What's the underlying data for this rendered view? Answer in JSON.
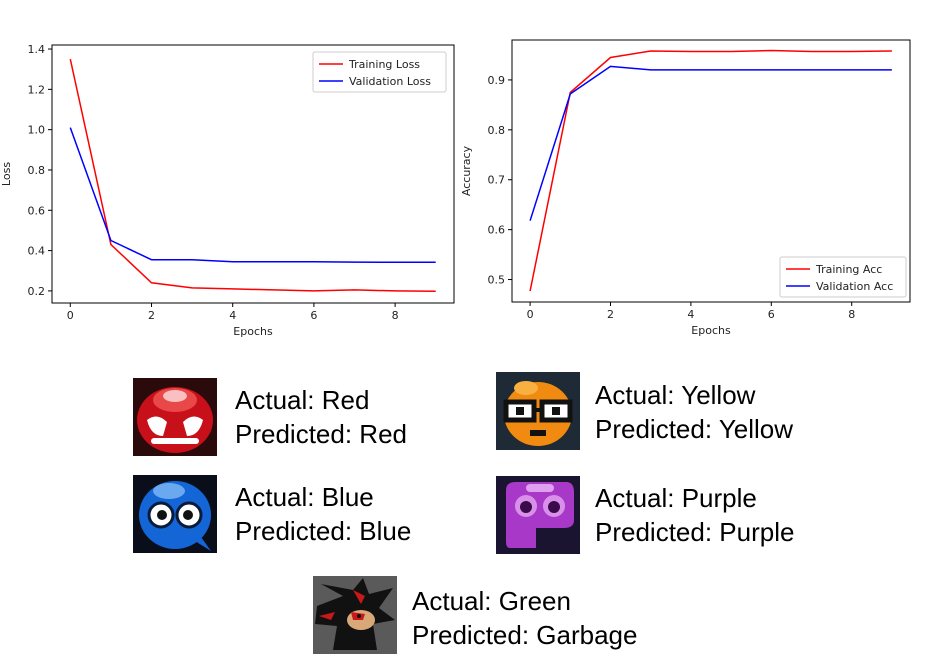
{
  "chart_data": [
    {
      "type": "line",
      "xlabel": "Epochs",
      "ylabel": "Loss",
      "xlim": [
        -0.45,
        9.45
      ],
      "ylim": [
        0.14,
        1.42
      ],
      "xticks": [
        "0",
        "2",
        "4",
        "6",
        "8"
      ],
      "yticks": [
        "0.2",
        "0.4",
        "0.6",
        "0.8",
        "1.0",
        "1.2",
        "1.4"
      ],
      "legend_position": "top-right",
      "x": [
        0,
        1,
        2,
        3,
        4,
        5,
        6,
        7,
        8,
        9
      ],
      "series": [
        {
          "name": "Training Loss",
          "color": "#ff0000",
          "values": [
            1.35,
            0.43,
            0.24,
            0.215,
            0.21,
            0.205,
            0.2,
            0.205,
            0.2,
            0.198
          ]
        },
        {
          "name": "Validation Loss",
          "color": "#0000ff",
          "values": [
            1.01,
            0.45,
            0.355,
            0.355,
            0.345,
            0.345,
            0.345,
            0.343,
            0.342,
            0.342
          ]
        }
      ]
    },
    {
      "type": "line",
      "xlabel": "Epochs",
      "ylabel": "Accuracy",
      "xlim": [
        -0.45,
        9.45
      ],
      "ylim": [
        0.455,
        0.98
      ],
      "xticks": [
        "0",
        "2",
        "4",
        "6",
        "8"
      ],
      "yticks": [
        "0.5",
        "0.6",
        "0.7",
        "0.8",
        "0.9"
      ],
      "legend_position": "lower-right",
      "x": [
        0,
        1,
        2,
        3,
        4,
        5,
        6,
        7,
        8,
        9
      ],
      "series": [
        {
          "name": "Training Acc",
          "color": "#ff0000",
          "values": [
            0.477,
            0.875,
            0.945,
            0.958,
            0.957,
            0.957,
            0.959,
            0.957,
            0.957,
            0.958
          ]
        },
        {
          "name": "Validation Acc",
          "color": "#0000ff",
          "values": [
            0.618,
            0.872,
            0.927,
            0.92,
            0.92,
            0.92,
            0.92,
            0.92,
            0.92,
            0.92
          ]
        }
      ]
    }
  ],
  "predictions": [
    {
      "icon": "red-puyo-icon",
      "color": "#d0141e",
      "actual": "Actual: Red",
      "predicted": "Predicted: Red"
    },
    {
      "icon": "yellow-puyo-icon",
      "color": "#f08a10",
      "actual": "Actual: Yellow",
      "predicted": "Predicted: Yellow"
    },
    {
      "icon": "blue-puyo-icon",
      "color": "#1466d6",
      "actual": "Actual: Blue",
      "predicted": "Predicted: Blue"
    },
    {
      "icon": "purple-puyo-icon",
      "color": "#a838c8",
      "actual": "Actual: Purple",
      "predicted": "Predicted: Purple"
    },
    {
      "icon": "shadow-hedgehog-icon",
      "color": "#1a1a1a",
      "actual": "Actual: Green",
      "predicted": "Predicted: Garbage"
    }
  ]
}
